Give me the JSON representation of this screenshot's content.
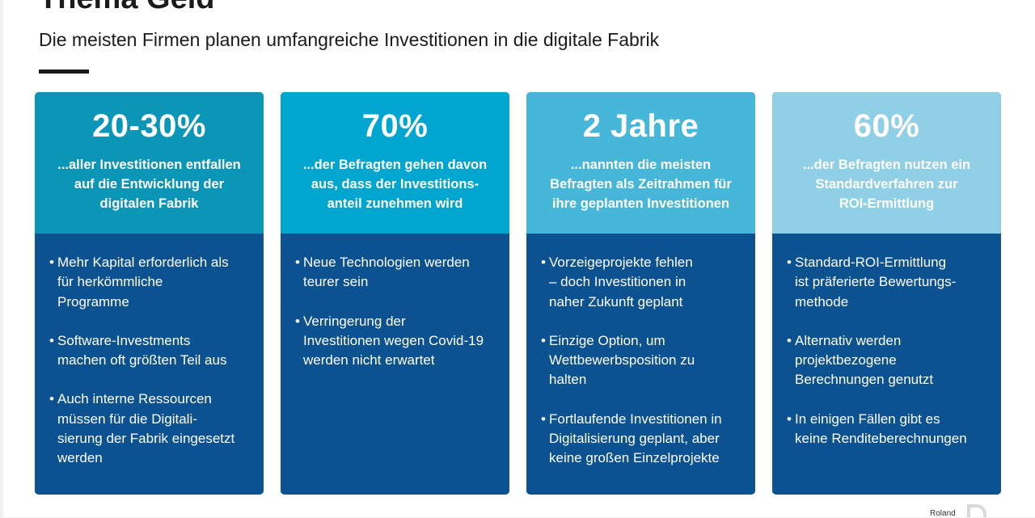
{
  "header": {
    "title": "Thema Geld",
    "subtitle": "Die meisten Firmen planen umfangreiche Investitionen in die digitale Fabrik"
  },
  "cards": [
    {
      "stat": "20-30%",
      "desc_lines": [
        "...aller Investitionen entfallen",
        "auf die Entwicklung der",
        "digitalen Fabrik"
      ],
      "top_color": "#0b96b8",
      "bullets": [
        [
          "Mehr Kapital erforderlich als",
          "für herkömmliche",
          "Programme"
        ],
        [
          "Software-Investments",
          "machen oft größten Teil aus"
        ],
        [
          "Auch interne Ressourcen",
          "müssen für die Digitali-",
          "sierung der Fabrik eingesetzt",
          "werden"
        ]
      ]
    },
    {
      "stat": "70%",
      "desc_lines": [
        "...der Befragten gehen davon",
        "aus, dass der Investitions-",
        "anteil zunehmen wird"
      ],
      "top_color": "#00a6cf",
      "bullets": [
        [
          "Neue Technologien werden",
          "teurer sein"
        ],
        [
          "Verringerung der",
          "Investitionen wegen Covid-19",
          "werden nicht erwartet"
        ]
      ]
    },
    {
      "stat": "2 Jahre",
      "desc_lines": [
        "...nannten die meisten",
        "Befragten als Zeitrahmen für",
        "ihre geplanten Investitionen"
      ],
      "top_color": "#46b6d9",
      "bullets": [
        [
          "Vorzeigeprojekte fehlen",
          "– doch Investitionen in",
          "naher Zukunft geplant"
        ],
        [
          "Einzige Option, um",
          "Wettbewerbsposition zu",
          "halten"
        ],
        [
          "Fortlaufende Investitionen in",
          "Digitalisierung geplant, aber",
          "keine großen Einzelprojekte"
        ]
      ]
    },
    {
      "stat": "60%",
      "desc_lines": [
        "...der Befragten nutzen ein",
        "Standardverfahren zur",
        "ROI-Ermittlung"
      ],
      "top_color": "#8fd0e6",
      "bullets": [
        [
          "Standard-ROI-Ermittlung",
          "ist präferierte Bewertungs-",
          "methode"
        ],
        [
          "Alternativ werden",
          "projektbezogene",
          "Berechnungen genutzt"
        ],
        [
          "In einigen Fällen gibt es",
          "keine Renditeberechnungen"
        ]
      ]
    }
  ],
  "bullet_symbol": "•",
  "colors": {
    "card_bottom": "#0c5290",
    "text_light": "#ffffff",
    "text_dark": "#1a1a1a"
  },
  "footer": {
    "logo_text": "Roland"
  }
}
